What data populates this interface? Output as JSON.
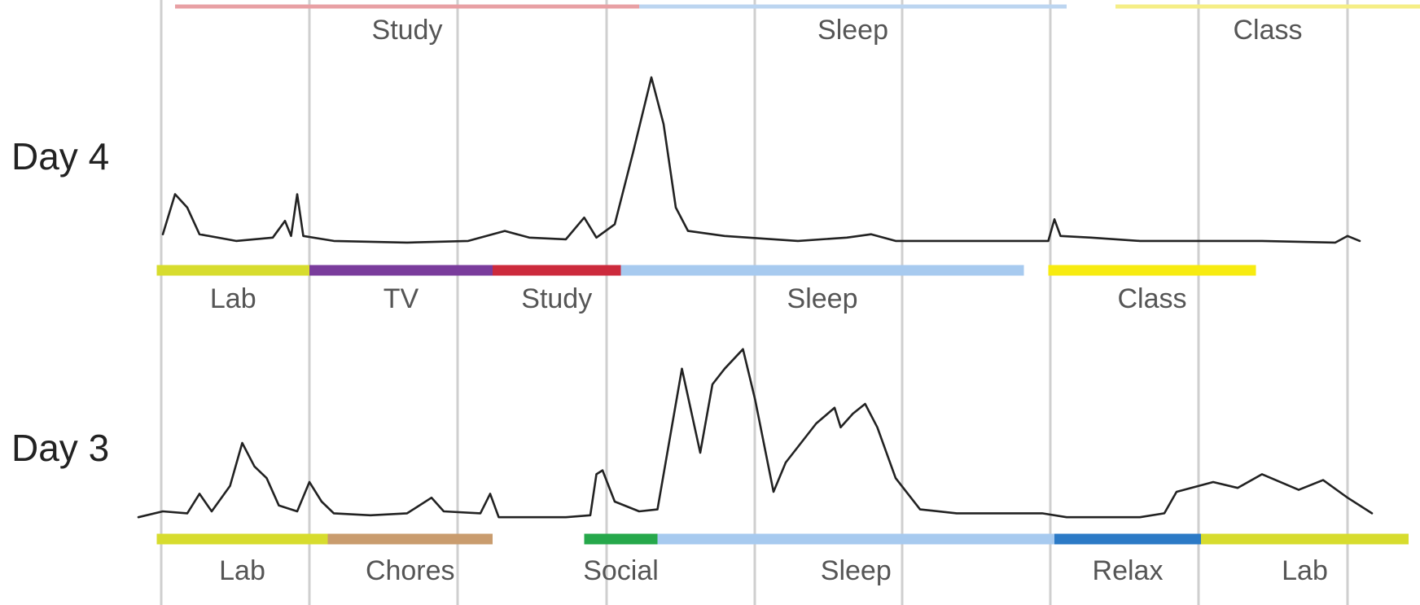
{
  "chart_data": {
    "type": "line",
    "title": "",
    "xlabel": "",
    "ylabel": "",
    "grid": true,
    "rows": [
      {
        "name": "Day 4",
        "series": [
          {
            "x": 0.0,
            "y": 0.06
          },
          {
            "x": 0.01,
            "y": 0.3
          },
          {
            "x": 0.02,
            "y": 0.22
          },
          {
            "x": 0.03,
            "y": 0.06
          },
          {
            "x": 0.06,
            "y": 0.02
          },
          {
            "x": 0.09,
            "y": 0.04
          },
          {
            "x": 0.1,
            "y": 0.14
          },
          {
            "x": 0.105,
            "y": 0.05
          },
          {
            "x": 0.11,
            "y": 0.3
          },
          {
            "x": 0.115,
            "y": 0.05
          },
          {
            "x": 0.14,
            "y": 0.02
          },
          {
            "x": 0.2,
            "y": 0.01
          },
          {
            "x": 0.25,
            "y": 0.02
          },
          {
            "x": 0.28,
            "y": 0.08
          },
          {
            "x": 0.3,
            "y": 0.04
          },
          {
            "x": 0.33,
            "y": 0.03
          },
          {
            "x": 0.345,
            "y": 0.16
          },
          {
            "x": 0.355,
            "y": 0.04
          },
          {
            "x": 0.37,
            "y": 0.12
          },
          {
            "x": 0.385,
            "y": 0.55
          },
          {
            "x": 0.4,
            "y": 1.0
          },
          {
            "x": 0.41,
            "y": 0.72
          },
          {
            "x": 0.42,
            "y": 0.22
          },
          {
            "x": 0.43,
            "y": 0.08
          },
          {
            "x": 0.46,
            "y": 0.05
          },
          {
            "x": 0.52,
            "y": 0.02
          },
          {
            "x": 0.56,
            "y": 0.04
          },
          {
            "x": 0.58,
            "y": 0.06
          },
          {
            "x": 0.6,
            "y": 0.02
          },
          {
            "x": 0.7,
            "y": 0.02
          },
          {
            "x": 0.725,
            "y": 0.02
          },
          {
            "x": 0.73,
            "y": 0.15
          },
          {
            "x": 0.735,
            "y": 0.05
          },
          {
            "x": 0.76,
            "y": 0.04
          },
          {
            "x": 0.8,
            "y": 0.02
          },
          {
            "x": 0.9,
            "y": 0.02
          },
          {
            "x": 0.96,
            "y": 0.01
          },
          {
            "x": 0.97,
            "y": 0.05
          },
          {
            "x": 0.98,
            "y": 0.02
          }
        ],
        "top_activities": [
          {
            "label": "Study",
            "start": 0.01,
            "end": 0.39,
            "color": "#e8a0a4"
          },
          {
            "label": "Sleep",
            "start": 0.39,
            "end": 0.74,
            "color": "#bcd5f0"
          },
          {
            "label": "Class",
            "start": 0.78,
            "end": 1.03,
            "color": "#f5ee86"
          }
        ],
        "bottom_activities": [
          {
            "label": "Lab",
            "start": -0.005,
            "end": 0.12,
            "color": "#d7dc2e"
          },
          {
            "label": "TV",
            "start": 0.12,
            "end": 0.27,
            "color": "#7a3c9c"
          },
          {
            "label": "Study",
            "start": 0.27,
            "end": 0.375,
            "color": "#cc2a3c"
          },
          {
            "label": "Sleep",
            "start": 0.375,
            "end": 0.705,
            "color": "#a7caef"
          },
          {
            "label": "Class",
            "start": 0.725,
            "end": 0.895,
            "color": "#f7eb10"
          }
        ]
      },
      {
        "name": "Day 3",
        "series": [
          {
            "x": -0.02,
            "y": 0.02
          },
          {
            "x": 0.0,
            "y": 0.05
          },
          {
            "x": 0.02,
            "y": 0.04
          },
          {
            "x": 0.03,
            "y": 0.14
          },
          {
            "x": 0.04,
            "y": 0.05
          },
          {
            "x": 0.055,
            "y": 0.18
          },
          {
            "x": 0.065,
            "y": 0.4
          },
          {
            "x": 0.075,
            "y": 0.28
          },
          {
            "x": 0.085,
            "y": 0.22
          },
          {
            "x": 0.095,
            "y": 0.08
          },
          {
            "x": 0.11,
            "y": 0.05
          },
          {
            "x": 0.12,
            "y": 0.2
          },
          {
            "x": 0.13,
            "y": 0.1
          },
          {
            "x": 0.14,
            "y": 0.04
          },
          {
            "x": 0.17,
            "y": 0.03
          },
          {
            "x": 0.2,
            "y": 0.04
          },
          {
            "x": 0.22,
            "y": 0.12
          },
          {
            "x": 0.23,
            "y": 0.05
          },
          {
            "x": 0.26,
            "y": 0.04
          },
          {
            "x": 0.268,
            "y": 0.14
          },
          {
            "x": 0.275,
            "y": 0.02
          },
          {
            "x": 0.33,
            "y": 0.02
          },
          {
            "x": 0.35,
            "y": 0.03
          },
          {
            "x": 0.355,
            "y": 0.24
          },
          {
            "x": 0.36,
            "y": 0.26
          },
          {
            "x": 0.37,
            "y": 0.1
          },
          {
            "x": 0.39,
            "y": 0.05
          },
          {
            "x": 0.405,
            "y": 0.06
          },
          {
            "x": 0.425,
            "y": 0.78
          },
          {
            "x": 0.44,
            "y": 0.35
          },
          {
            "x": 0.45,
            "y": 0.7
          },
          {
            "x": 0.46,
            "y": 0.78
          },
          {
            "x": 0.475,
            "y": 0.88
          },
          {
            "x": 0.485,
            "y": 0.62
          },
          {
            "x": 0.5,
            "y": 0.15
          },
          {
            "x": 0.51,
            "y": 0.3
          },
          {
            "x": 0.535,
            "y": 0.5
          },
          {
            "x": 0.55,
            "y": 0.58
          },
          {
            "x": 0.555,
            "y": 0.48
          },
          {
            "x": 0.565,
            "y": 0.55
          },
          {
            "x": 0.575,
            "y": 0.6
          },
          {
            "x": 0.585,
            "y": 0.48
          },
          {
            "x": 0.6,
            "y": 0.22
          },
          {
            "x": 0.62,
            "y": 0.06
          },
          {
            "x": 0.65,
            "y": 0.04
          },
          {
            "x": 0.72,
            "y": 0.04
          },
          {
            "x": 0.74,
            "y": 0.02
          },
          {
            "x": 0.8,
            "y": 0.02
          },
          {
            "x": 0.82,
            "y": 0.04
          },
          {
            "x": 0.83,
            "y": 0.15
          },
          {
            "x": 0.86,
            "y": 0.2
          },
          {
            "x": 0.88,
            "y": 0.17
          },
          {
            "x": 0.9,
            "y": 0.24
          },
          {
            "x": 0.93,
            "y": 0.16
          },
          {
            "x": 0.95,
            "y": 0.21
          },
          {
            "x": 0.97,
            "y": 0.12
          },
          {
            "x": 0.99,
            "y": 0.04
          }
        ],
        "bottom_activities": [
          {
            "label": "Lab",
            "start": -0.005,
            "end": 0.135,
            "color": "#d7dc2e"
          },
          {
            "label": "Chores",
            "start": 0.135,
            "end": 0.27,
            "color": "#c99c6e"
          },
          {
            "label": "Social",
            "start": 0.345,
            "end": 0.405,
            "color": "#26a84b"
          },
          {
            "label": "Sleep",
            "start": 0.405,
            "end": 0.73,
            "color": "#a7caef"
          },
          {
            "label": "Relax",
            "start": 0.73,
            "end": 0.85,
            "color": "#2c7ac6"
          },
          {
            "label": "Lab",
            "start": 0.85,
            "end": 1.02,
            "color": "#d7dc2e"
          }
        ]
      }
    ]
  }
}
